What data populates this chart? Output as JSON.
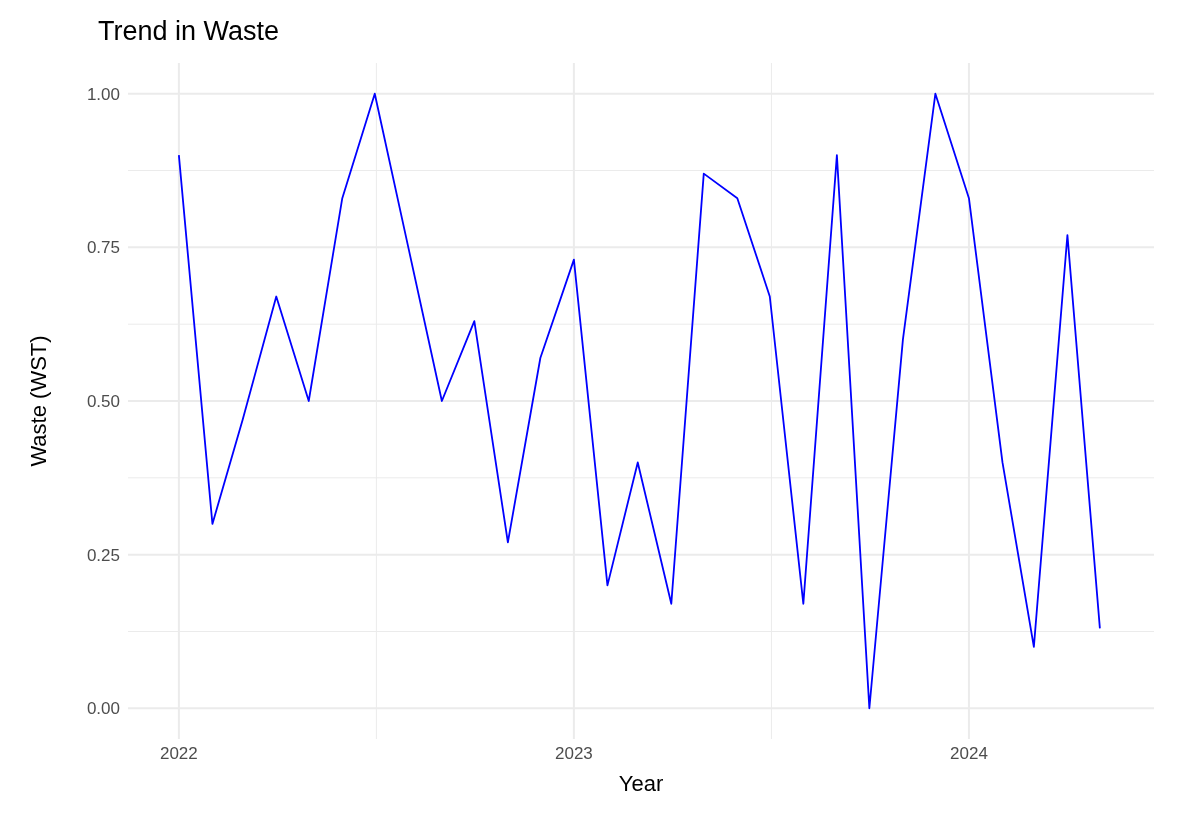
{
  "chart_data": {
    "type": "line",
    "title": "Trend in Waste",
    "xlabel": "Year",
    "ylabel": "Waste (WST)",
    "x": [
      "2022-01",
      "2022-02",
      "2022-03",
      "2022-04",
      "2022-05",
      "2022-06",
      "2022-07",
      "2022-08",
      "2022-09",
      "2022-10",
      "2022-11",
      "2022-12",
      "2023-01",
      "2023-02",
      "2023-03",
      "2023-04",
      "2023-05",
      "2023-06",
      "2023-07",
      "2023-08",
      "2023-09",
      "2023-10",
      "2023-11",
      "2023-12",
      "2024-01",
      "2024-02",
      "2024-03",
      "2024-04",
      "2024-05"
    ],
    "series": [
      {
        "color": "#0000ff",
        "values": [
          0.9,
          0.3,
          0.47,
          0.67,
          0.5,
          0.83,
          1.0,
          0.75,
          0.5,
          0.63,
          0.27,
          0.57,
          0.73,
          0.2,
          0.4,
          0.17,
          0.87,
          0.83,
          0.67,
          0.17,
          0.9,
          0.0,
          0.6,
          1.0,
          0.83,
          0.4,
          0.1,
          0.77,
          0.13
        ]
      }
    ],
    "xlim": [
      "2021-11-15",
      "2024-06-20"
    ],
    "xticks": [
      {
        "value": "2022-01",
        "label": "2022"
      },
      {
        "value": "2023-01",
        "label": "2023"
      },
      {
        "value": "2024-01",
        "label": "2024"
      }
    ],
    "ylim": [
      -0.05,
      1.05
    ],
    "yticks": [
      {
        "value": 0,
        "label": "0.00"
      },
      {
        "value": 0.25,
        "label": "0.25"
      },
      {
        "value": 0.5,
        "label": "0.50"
      },
      {
        "value": 0.75,
        "label": "0.75"
      },
      {
        "value": 1,
        "label": "1.00"
      }
    ],
    "grid": true,
    "legend": false,
    "marker": "none",
    "line_style": "solid"
  }
}
